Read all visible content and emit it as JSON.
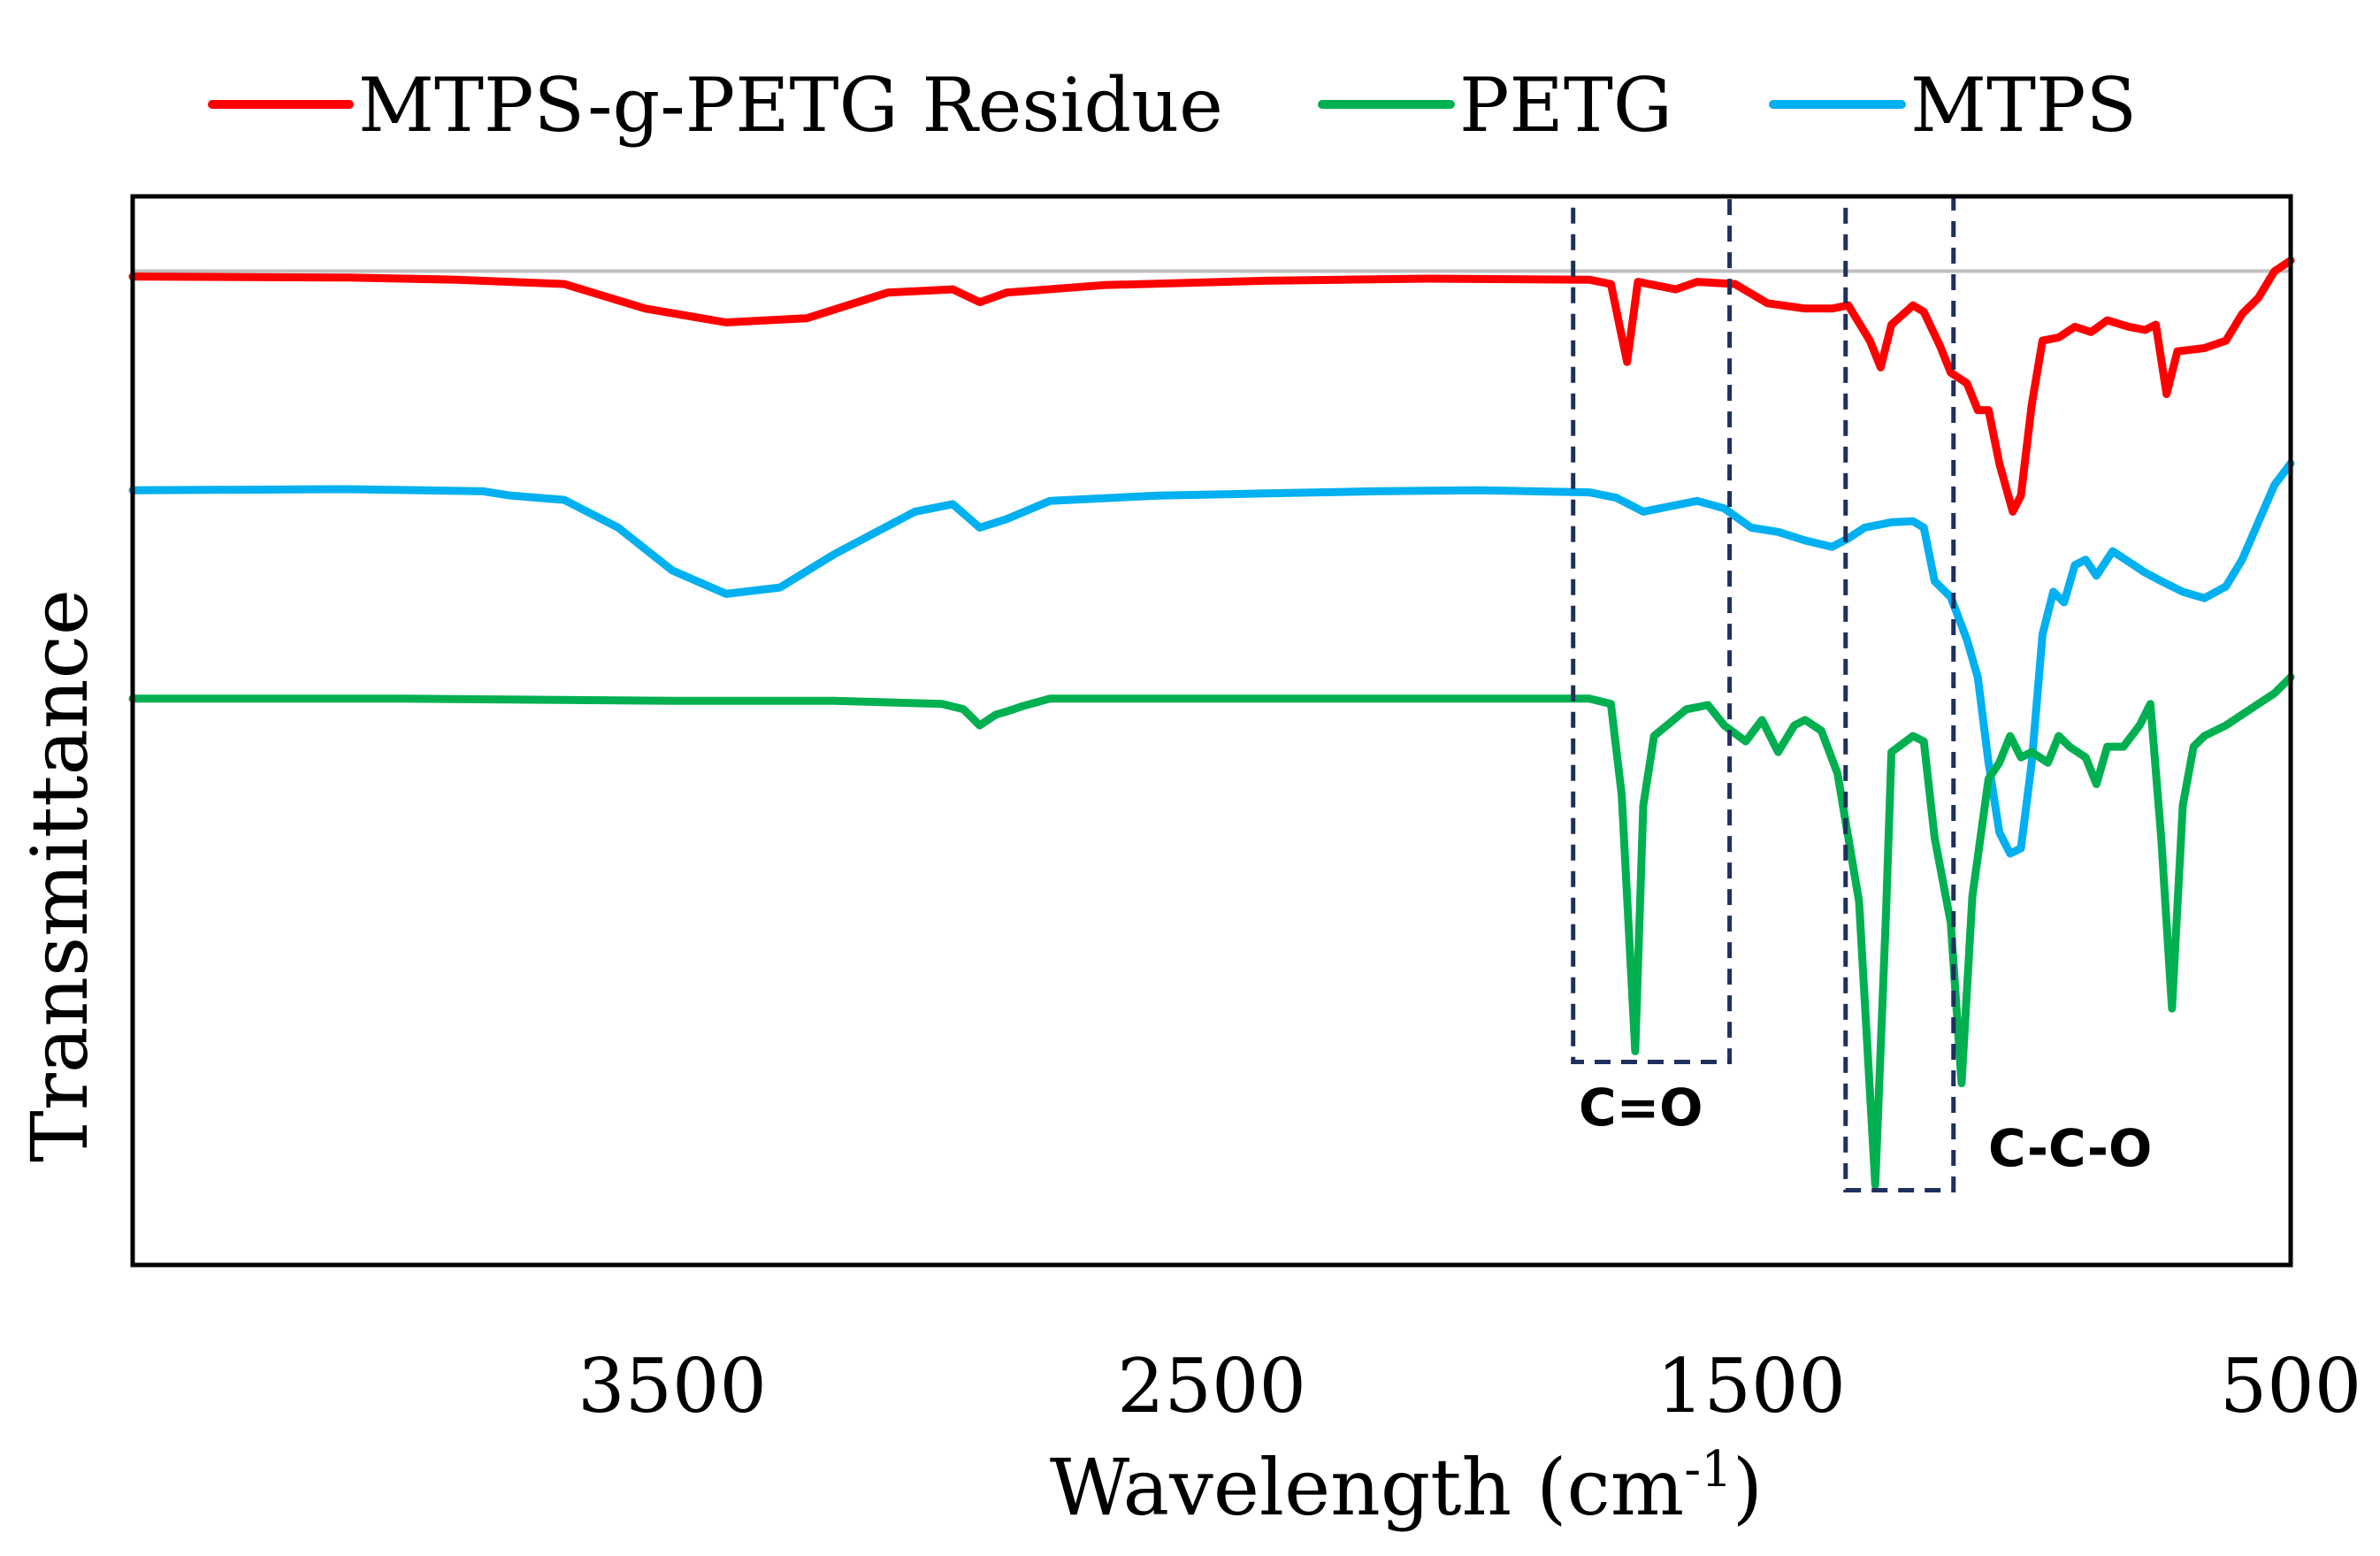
{
  "chart_data": {
    "type": "line",
    "title": "",
    "xlabel": "Wavelength (cm",
    "xlabel_sup": "-1",
    "xlabel_close": ")",
    "ylabel": "Transmittance",
    "xlim": [
      4500,
      500
    ],
    "ylim": [
      0,
      100
    ],
    "x_ticks": [
      3500,
      2500,
      1500,
      500
    ],
    "x_tick_labels": [
      "3500",
      "2500",
      "1500",
      "500"
    ],
    "reference_line": {
      "y": 93,
      "color": "#bfbfbf"
    },
    "legend_position": "top",
    "series": [
      {
        "name": "MTPS-g-PETG Residue",
        "color": "#ff0000",
        "points": [
          [
            4500,
            92.5
          ],
          [
            4100,
            92.4
          ],
          [
            3900,
            92.2
          ],
          [
            3700,
            91.8
          ],
          [
            3550,
            89.5
          ],
          [
            3400,
            88.2
          ],
          [
            3250,
            88.6
          ],
          [
            3100,
            91.0
          ],
          [
            2980,
            91.3
          ],
          [
            2930,
            90.1
          ],
          [
            2880,
            91.0
          ],
          [
            2700,
            91.7
          ],
          [
            2400,
            92.1
          ],
          [
            2100,
            92.3
          ],
          [
            1800,
            92.2
          ],
          [
            1760,
            91.8
          ],
          [
            1730,
            84.5
          ],
          [
            1710,
            92.0
          ],
          [
            1640,
            91.3
          ],
          [
            1600,
            92.0
          ],
          [
            1530,
            91.8
          ],
          [
            1470,
            90.0
          ],
          [
            1400,
            89.5
          ],
          [
            1350,
            89.5
          ],
          [
            1320,
            89.8
          ],
          [
            1280,
            86.5
          ],
          [
            1260,
            84.0
          ],
          [
            1240,
            88.0
          ],
          [
            1200,
            89.8
          ],
          [
            1180,
            89.2
          ],
          [
            1150,
            86.0
          ],
          [
            1130,
            83.5
          ],
          [
            1100,
            82.5
          ],
          [
            1080,
            80.0
          ],
          [
            1060,
            80.0
          ],
          [
            1040,
            75.0
          ],
          [
            1015,
            70.5
          ],
          [
            1000,
            72.0
          ],
          [
            980,
            80.5
          ],
          [
            960,
            86.5
          ],
          [
            930,
            86.8
          ],
          [
            900,
            87.8
          ],
          [
            870,
            87.3
          ],
          [
            840,
            88.4
          ],
          [
            800,
            87.8
          ],
          [
            770,
            87.5
          ],
          [
            750,
            88.0
          ],
          [
            730,
            81.5
          ],
          [
            710,
            85.5
          ],
          [
            660,
            85.8
          ],
          [
            620,
            86.5
          ],
          [
            590,
            89.0
          ],
          [
            560,
            90.5
          ],
          [
            530,
            93.0
          ],
          [
            500,
            94.0
          ]
        ]
      },
      {
        "name": "MTPS",
        "color": "#00b0f0",
        "points": [
          [
            4500,
            72.5
          ],
          [
            4100,
            72.6
          ],
          [
            3850,
            72.4
          ],
          [
            3800,
            72.0
          ],
          [
            3700,
            71.6
          ],
          [
            3600,
            69.0
          ],
          [
            3500,
            65.0
          ],
          [
            3400,
            62.8
          ],
          [
            3300,
            63.4
          ],
          [
            3200,
            66.5
          ],
          [
            3050,
            70.5
          ],
          [
            2980,
            71.2
          ],
          [
            2930,
            69.0
          ],
          [
            2880,
            69.8
          ],
          [
            2800,
            71.5
          ],
          [
            2600,
            72.0
          ],
          [
            2400,
            72.2
          ],
          [
            2200,
            72.4
          ],
          [
            2000,
            72.5
          ],
          [
            1800,
            72.3
          ],
          [
            1750,
            71.8
          ],
          [
            1700,
            70.5
          ],
          [
            1650,
            71.0
          ],
          [
            1600,
            71.5
          ],
          [
            1550,
            70.8
          ],
          [
            1500,
            69.0
          ],
          [
            1450,
            68.6
          ],
          [
            1400,
            67.8
          ],
          [
            1350,
            67.2
          ],
          [
            1320,
            68.0
          ],
          [
            1290,
            69.0
          ],
          [
            1240,
            69.5
          ],
          [
            1200,
            69.6
          ],
          [
            1180,
            69.0
          ],
          [
            1160,
            64.0
          ],
          [
            1130,
            62.5
          ],
          [
            1100,
            58.5
          ],
          [
            1080,
            55.0
          ],
          [
            1060,
            47.0
          ],
          [
            1040,
            40.5
          ],
          [
            1020,
            38.5
          ],
          [
            1000,
            39.0
          ],
          [
            980,
            47.0
          ],
          [
            960,
            59.0
          ],
          [
            940,
            63.0
          ],
          [
            920,
            62.0
          ],
          [
            900,
            65.5
          ],
          [
            880,
            66.0
          ],
          [
            860,
            64.5
          ],
          [
            830,
            66.8
          ],
          [
            800,
            65.8
          ],
          [
            770,
            64.8
          ],
          [
            740,
            64.0
          ],
          [
            700,
            63.0
          ],
          [
            660,
            62.4
          ],
          [
            620,
            63.5
          ],
          [
            590,
            66.0
          ],
          [
            560,
            69.5
          ],
          [
            530,
            73.0
          ],
          [
            500,
            75.0
          ]
        ]
      },
      {
        "name": "PETG",
        "color": "#00b050",
        "points": [
          [
            4500,
            53.0
          ],
          [
            4000,
            53.0
          ],
          [
            3500,
            52.8
          ],
          [
            3200,
            52.8
          ],
          [
            3000,
            52.5
          ],
          [
            2960,
            52.0
          ],
          [
            2930,
            50.5
          ],
          [
            2900,
            51.5
          ],
          [
            2880,
            51.8
          ],
          [
            2850,
            52.3
          ],
          [
            2800,
            53.0
          ],
          [
            2400,
            53.0
          ],
          [
            2000,
            53.0
          ],
          [
            1800,
            53.0
          ],
          [
            1760,
            52.5
          ],
          [
            1740,
            44.0
          ],
          [
            1715,
            20.0
          ],
          [
            1700,
            43.0
          ],
          [
            1680,
            49.5
          ],
          [
            1620,
            52.0
          ],
          [
            1580,
            52.4
          ],
          [
            1550,
            50.5
          ],
          [
            1510,
            49.0
          ],
          [
            1480,
            51.0
          ],
          [
            1450,
            48.0
          ],
          [
            1420,
            50.5
          ],
          [
            1400,
            51.0
          ],
          [
            1370,
            50.0
          ],
          [
            1340,
            46.0
          ],
          [
            1300,
            34.0
          ],
          [
            1270,
            7.5
          ],
          [
            1250,
            33.0
          ],
          [
            1240,
            48.0
          ],
          [
            1200,
            49.5
          ],
          [
            1180,
            49.0
          ],
          [
            1160,
            40.0
          ],
          [
            1130,
            32.0
          ],
          [
            1110,
            17.0
          ],
          [
            1090,
            34.5
          ],
          [
            1060,
            45.5
          ],
          [
            1040,
            47.0
          ],
          [
            1020,
            49.5
          ],
          [
            1000,
            47.5
          ],
          [
            980,
            48.0
          ],
          [
            950,
            47.0
          ],
          [
            930,
            49.5
          ],
          [
            910,
            48.5
          ],
          [
            880,
            47.5
          ],
          [
            860,
            45.0
          ],
          [
            840,
            48.5
          ],
          [
            810,
            48.5
          ],
          [
            780,
            50.5
          ],
          [
            760,
            52.5
          ],
          [
            740,
            40.0
          ],
          [
            720,
            24.0
          ],
          [
            700,
            43.0
          ],
          [
            680,
            48.5
          ],
          [
            660,
            49.5
          ],
          [
            620,
            50.5
          ],
          [
            590,
            51.5
          ],
          [
            560,
            52.5
          ],
          [
            530,
            53.5
          ],
          [
            500,
            55.0
          ]
        ]
      }
    ],
    "annotations": [
      {
        "label": "C=O",
        "box_x": [
          1830,
          1540
        ],
        "box_y": [
          19,
          100
        ]
      },
      {
        "label": "C-C-O",
        "box_x": [
          1325,
          1125
        ],
        "box_y": [
          7,
          100
        ]
      }
    ]
  }
}
